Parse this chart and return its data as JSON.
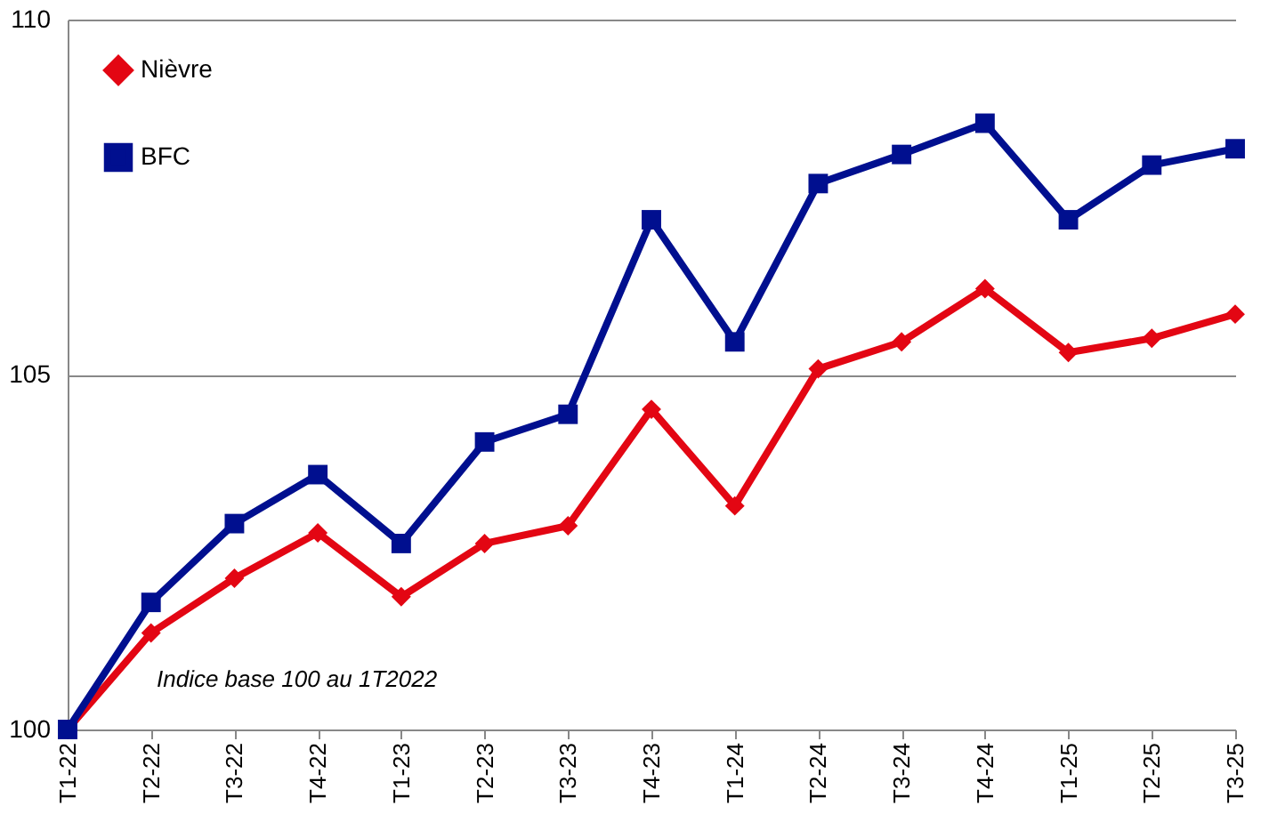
{
  "chart_data": {
    "type": "line",
    "categories": [
      "T1-22",
      "T2-22",
      "T3-22",
      "T4-22",
      "T1-23",
      "T2-23",
      "T3-23",
      "T4-23",
      "T1-24",
      "T2-24",
      "T3-24",
      "T4-24",
      "T1-25",
      "T2-25",
      "T3-25"
    ],
    "series": [
      {
        "name": "Nièvre",
        "color": "#e30613",
        "marker": "diamond",
        "values": [
          100,
          101.36,
          102.13,
          102.77,
          101.87,
          102.62,
          102.87,
          104.51,
          103.15,
          105.08,
          105.46,
          106.21,
          105.31,
          105.51,
          105.85
        ]
      },
      {
        "name": "BFC",
        "color": "#000f8f",
        "marker": "square",
        "values": [
          100,
          101.79,
          102.9,
          103.59,
          102.62,
          104.05,
          104.44,
          107.18,
          105.46,
          107.69,
          108.1,
          108.54,
          107.18,
          107.95,
          108.18
        ]
      }
    ],
    "ylim": [
      100,
      110
    ],
    "yticks": [
      100,
      105,
      110
    ],
    "grid": "y",
    "legend": "top left",
    "line_style": "solid",
    "annotations": [
      "Indice base 100 au 1T2022"
    ]
  }
}
